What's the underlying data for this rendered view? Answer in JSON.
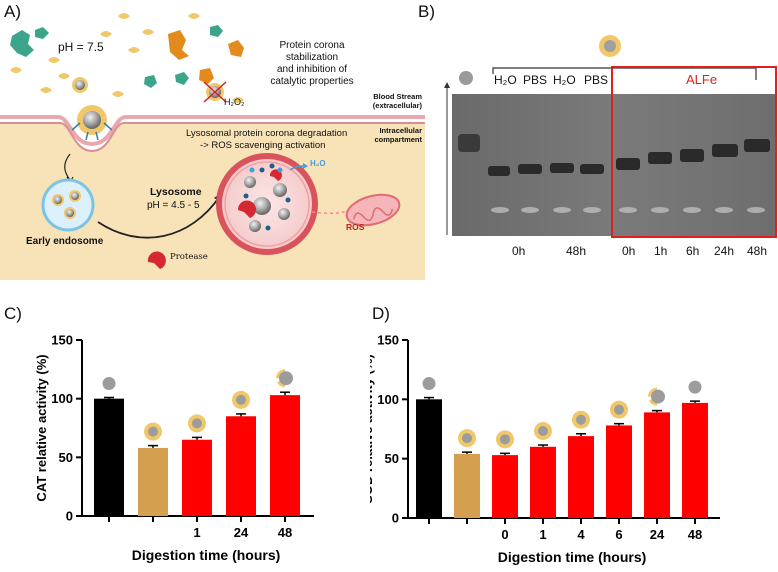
{
  "panel_labels": {
    "a": "A)",
    "b": "B)",
    "c": "C)",
    "d": "D)"
  },
  "panel_a": {
    "ph_out": "pH = 7.5",
    "corona_text_1": "Protein corona",
    "corona_text_2": "stabilization",
    "corona_text_3": "and inhibition of",
    "corona_text_4": "catalytic properties",
    "h2o2": "H₂O₂",
    "blood_1": "Blood Stream",
    "blood_2": "(extracellular)",
    "intra_1": "Intracellular",
    "intra_2": "compartment",
    "lyso_text_1": "Lysosomal protein corona degradation",
    "lyso_text_2": "-> ROS scavenging activation",
    "h2o": "H₂O",
    "lysosome": "Lysosome",
    "ph_lyso": "pH = 4.5 - 5",
    "early_endosome": "Early endosome",
    "protease": "Protease",
    "ros": "ROS"
  },
  "panel_b": {
    "lanes_top": [
      "H₂O",
      "PBS",
      "H₂O",
      "PBS"
    ],
    "alfe_label": "ALFe",
    "times_left": [
      "0h",
      "48h"
    ],
    "times_right": [
      "0h",
      "1h",
      "6h",
      "24h",
      "48h"
    ]
  },
  "colors": {
    "black": "#000000",
    "tan": "#d4a050",
    "red": "#ff0000",
    "alfe_red": "#e0201c"
  },
  "chart_data": [
    {
      "type": "bar",
      "title": "",
      "ylabel": "CAT relative activity (%)",
      "xlabel": "Digestion time (hours)",
      "ylim": [
        0,
        150
      ],
      "yticks": [
        0,
        50,
        100,
        150
      ],
      "categories": [
        "",
        "",
        "1",
        "24",
        "48"
      ],
      "values": [
        100,
        58,
        65,
        85,
        103
      ],
      "errors": [
        1,
        2,
        2,
        2,
        2.5
      ],
      "bar_colors": [
        "#000000",
        "#d4a050",
        "#ff0000",
        "#ff0000",
        "#ff0000"
      ],
      "icon_types": [
        "bare",
        "coated",
        "coated",
        "coated",
        "partial"
      ]
    },
    {
      "type": "bar",
      "title": "",
      "ylabel": "SOD relative activity (%)",
      "xlabel": "Digestion time (hours)",
      "ylim": [
        0,
        150
      ],
      "yticks": [
        0,
        50,
        100,
        150
      ],
      "categories": [
        "",
        "",
        "0",
        "1",
        "4",
        "6",
        "24",
        "48"
      ],
      "values": [
        100,
        54,
        53,
        60,
        69,
        78,
        89,
        97
      ],
      "errors": [
        1.5,
        1.5,
        1.5,
        1.5,
        2,
        1.5,
        1.5,
        1.5
      ],
      "bar_colors": [
        "#000000",
        "#d4a050",
        "#ff0000",
        "#ff0000",
        "#ff0000",
        "#ff0000",
        "#ff0000",
        "#ff0000"
      ],
      "icon_types": [
        "bare",
        "coated",
        "coated",
        "coated",
        "coated",
        "coated",
        "partial",
        "bare"
      ]
    }
  ]
}
